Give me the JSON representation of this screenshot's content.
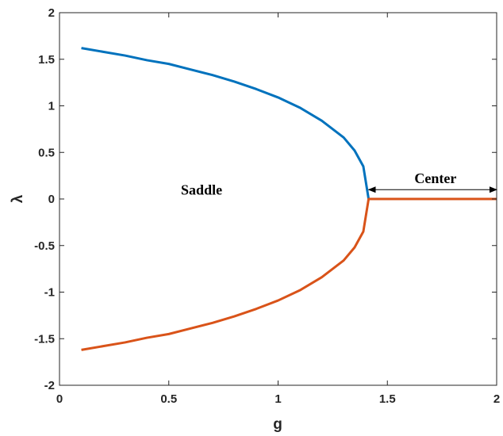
{
  "chart_data": {
    "type": "line",
    "title": "",
    "xlabel": "g",
    "ylabel": "λ",
    "xlim": [
      0,
      2
    ],
    "ylim": [
      -2,
      2
    ],
    "xticks": [
      0,
      0.5,
      1,
      1.5,
      2
    ],
    "xtick_labels": [
      "0",
      "0.5",
      "1",
      "1.5",
      "2"
    ],
    "yticks": [
      2,
      1.5,
      1,
      0.5,
      0,
      -0.5,
      -1,
      -1.5,
      -2
    ],
    "ytick_labels": [
      "2",
      "1.5",
      "1",
      "0.5",
      "0",
      "-0.5",
      "-1",
      "-1.5",
      "-2"
    ],
    "grid": false,
    "series": [
      {
        "color": "#0072BD",
        "x": [
          0.1,
          0.2,
          0.3,
          0.4,
          0.5,
          0.6,
          0.7,
          0.8,
          0.9,
          1.0,
          1.1,
          1.2,
          1.3,
          1.35,
          1.39,
          1.4142
        ],
        "y": [
          1.62,
          1.58,
          1.54,
          1.49,
          1.45,
          1.39,
          1.33,
          1.26,
          1.18,
          1.09,
          0.98,
          0.84,
          0.66,
          0.52,
          0.35,
          0.0
        ]
      },
      {
        "color": "#D95319",
        "x": [
          0.1,
          0.2,
          0.3,
          0.4,
          0.5,
          0.6,
          0.7,
          0.8,
          0.9,
          1.0,
          1.1,
          1.2,
          1.3,
          1.35,
          1.39,
          1.4142,
          1.5,
          1.6,
          1.7,
          1.8,
          1.9,
          2.0
        ],
        "y": [
          -1.62,
          -1.58,
          -1.54,
          -1.49,
          -1.45,
          -1.39,
          -1.33,
          -1.26,
          -1.18,
          -1.09,
          -0.98,
          -0.84,
          -0.66,
          -0.52,
          -0.35,
          0.0,
          0.0,
          0.0,
          0.0,
          0.0,
          0.0,
          0.0
        ]
      }
    ],
    "annotations": [
      {
        "text": "Saddle",
        "x": 0.65,
        "y": 0.1
      },
      {
        "text": "Center",
        "x": 1.72,
        "y": 0.22
      },
      {
        "type": "double-arrow",
        "x_start": 1.4142,
        "x_end": 2.0,
        "y": 0.1
      }
    ]
  }
}
